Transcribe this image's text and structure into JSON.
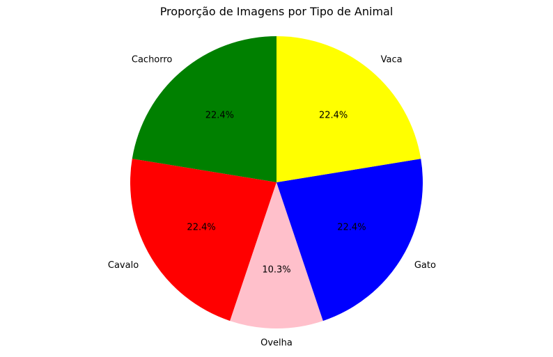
{
  "chart_data": {
    "type": "pie",
    "title": "Proporção de Imagens por Tipo de Animal",
    "start_angle_deg": 90,
    "direction": "counterclockwise",
    "slices": [
      {
        "label": "Cachorro",
        "value": 22.4,
        "pct_label": "22.4%",
        "color": "#008000"
      },
      {
        "label": "Cavalo",
        "value": 22.4,
        "pct_label": "22.4%",
        "color": "#ff0000"
      },
      {
        "label": "Ovelha",
        "value": 10.3,
        "pct_label": "10.3%",
        "color": "#ffc0cb"
      },
      {
        "label": "Gato",
        "value": 22.4,
        "pct_label": "22.4%",
        "color": "#0000ff"
      },
      {
        "label": "Vaca",
        "value": 22.4,
        "pct_label": "22.4%",
        "color": "#ffff00"
      }
    ]
  }
}
